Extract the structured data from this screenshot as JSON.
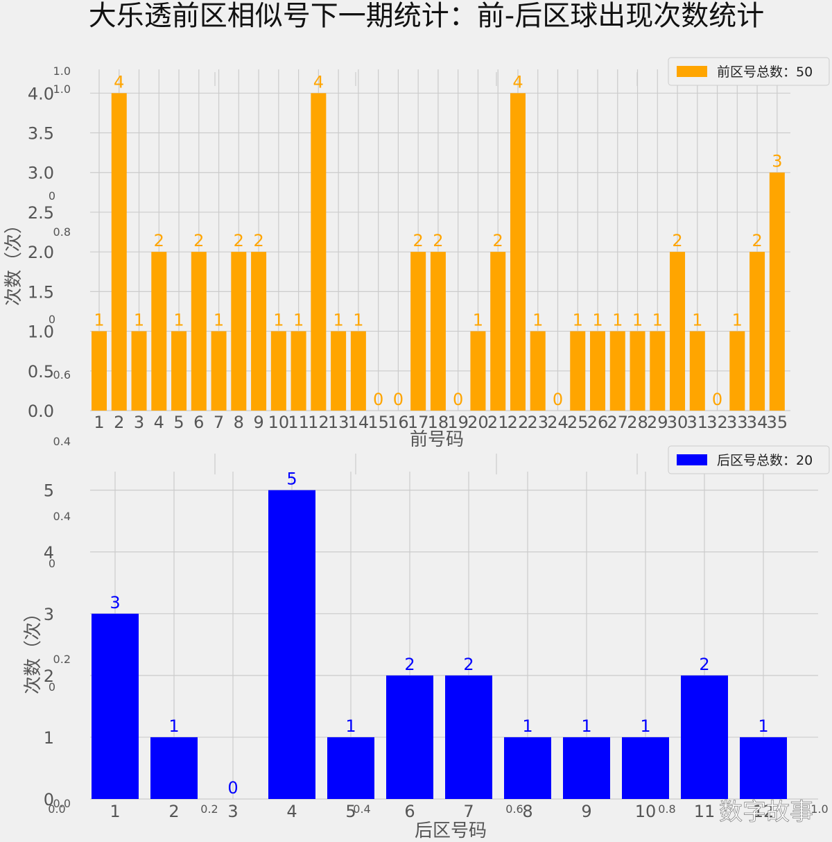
{
  "title": "大乐透前区相似号下一期统计：前-后区球出现次数统计",
  "watermark": "数字故事",
  "colors": {
    "front": "#FFA500",
    "back": "#0000FF",
    "grid": "#cbcbcb",
    "background": "#f0f0f0"
  },
  "chart_data": [
    {
      "type": "bar",
      "title": "",
      "xlabel": "前号码",
      "ylabel": "次数（次）",
      "legend": {
        "label": "前区号总数：50",
        "position": "top-right"
      },
      "categories": [
        "1",
        "2",
        "3",
        "4",
        "5",
        "6",
        "7",
        "8",
        "9",
        "10",
        "11",
        "12",
        "13",
        "14",
        "15",
        "16",
        "17",
        "18",
        "19",
        "20",
        "21",
        "22",
        "23",
        "24",
        "25",
        "26",
        "27",
        "28",
        "29",
        "30",
        "31",
        "32",
        "33",
        "34",
        "35"
      ],
      "values": [
        1,
        4,
        1,
        2,
        1,
        2,
        1,
        2,
        2,
        1,
        1,
        4,
        1,
        1,
        0,
        0,
        2,
        2,
        0,
        1,
        2,
        4,
        1,
        0,
        1,
        1,
        1,
        1,
        1,
        2,
        1,
        0,
        1,
        2,
        3
      ],
      "ylim": [
        0,
        4.3
      ],
      "yticks": [
        "0.0",
        "0.5",
        "1.0",
        "1.5",
        "2.0",
        "2.5",
        "3.0",
        "3.5",
        "4.0"
      ],
      "grid": true
    },
    {
      "type": "bar",
      "title": "",
      "xlabel": "后区号码",
      "ylabel": "次数（次）",
      "legend": {
        "label": "后区号总数：20",
        "position": "top-right"
      },
      "categories": [
        "1",
        "2",
        "3",
        "4",
        "5",
        "6",
        "7",
        "8",
        "9",
        "10",
        "11",
        "12"
      ],
      "values": [
        3,
        1,
        0,
        5,
        1,
        2,
        2,
        1,
        1,
        1,
        2,
        1
      ],
      "ylim": [
        0,
        5.3
      ],
      "yticks": [
        "0",
        "1",
        "2",
        "3",
        "4",
        "5"
      ],
      "grid": true
    }
  ],
  "ghost_axis": {
    "yticks": [
      "0.0",
      "0.2",
      "0.4",
      "0.6",
      "0.8",
      "1.0"
    ],
    "xticks": [
      "0.0",
      "0.2",
      "0.4",
      "0.6",
      "0.8",
      "1.0"
    ]
  }
}
